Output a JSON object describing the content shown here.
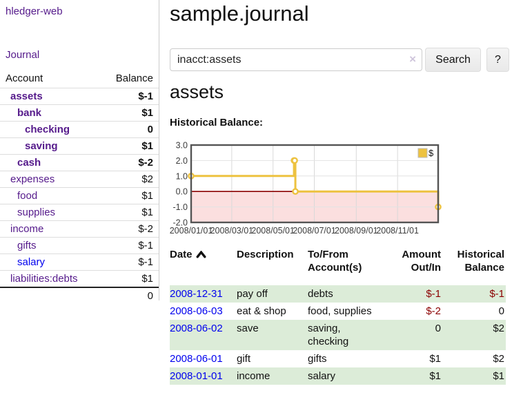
{
  "app": {
    "brand": "hledger-web",
    "nav_journal": "Journal"
  },
  "colors": {
    "link-purple": "#551a8b",
    "link-blue": "#0000ee",
    "negative": "#8b0000",
    "negative-soft": "#c46262",
    "stripe-green": "#dcecd8",
    "chart-gold": "#edc240",
    "chart-negative-bg": "#fbdfdf",
    "zero-line": "#8b0000",
    "grid-border": "#545454",
    "grid-line": "#d9d9d9"
  },
  "sidebar": {
    "header": {
      "account": "Account",
      "balance": "Balance"
    },
    "accounts": [
      {
        "name": "assets",
        "depth": 1,
        "balance": "$-1",
        "bold": true,
        "tone": "neg",
        "link": "purple"
      },
      {
        "name": "bank",
        "depth": 2,
        "balance": "$1",
        "bold": true,
        "tone": "plain",
        "link": "purple"
      },
      {
        "name": "checking",
        "depth": 3,
        "balance": "0",
        "bold": true,
        "tone": "plain",
        "link": "purple"
      },
      {
        "name": "saving",
        "depth": 3,
        "balance": "$1",
        "bold": true,
        "tone": "plain",
        "link": "purple"
      },
      {
        "name": "cash",
        "depth": 2,
        "balance": "$-2",
        "bold": true,
        "tone": "neg",
        "link": "purple"
      },
      {
        "name": "expenses",
        "depth": 1,
        "balance": "$2",
        "bold": false,
        "tone": "plain",
        "link": "purple"
      },
      {
        "name": "food",
        "depth": 2,
        "balance": "$1",
        "bold": false,
        "tone": "plain",
        "link": "purple"
      },
      {
        "name": "supplies",
        "depth": 2,
        "balance": "$1",
        "bold": false,
        "tone": "plain",
        "link": "purple"
      },
      {
        "name": "income",
        "depth": 1,
        "balance": "$-2",
        "bold": false,
        "tone": "negsoft",
        "link": "purple"
      },
      {
        "name": "gifts",
        "depth": 2,
        "balance": "$-1",
        "bold": false,
        "tone": "negsoft",
        "link": "purple"
      },
      {
        "name": "salary",
        "depth": 2,
        "balance": "$-1",
        "bold": false,
        "tone": "negsoft",
        "link": "blue"
      },
      {
        "name": "liabilities:debts",
        "depth": 1,
        "balance": "$1",
        "bold": false,
        "tone": "plain",
        "link": "purple"
      }
    ],
    "total": "0"
  },
  "header": {
    "title": "sample.journal"
  },
  "search": {
    "value": "inacct:assets",
    "clear_icon": "×",
    "search_label": "Search",
    "help_label": "?"
  },
  "page": {
    "heading": "assets"
  },
  "chart_data": {
    "type": "line",
    "step": true,
    "title": "Historical Balance:",
    "series": [
      {
        "name": "$",
        "color": "#edc240",
        "points": [
          [
            "2008-01-01",
            1
          ],
          [
            "2008-06-01",
            2
          ],
          [
            "2008-06-02",
            2
          ],
          [
            "2008-06-03",
            0
          ],
          [
            "2008-12-31",
            -1
          ]
        ]
      }
    ],
    "x_ticks": [
      "2008/01/01",
      "2008/03/01",
      "2008/05/01",
      "2008/07/01",
      "2008/09/01",
      "2008/11/01"
    ],
    "y_ticks": [
      3.0,
      2.0,
      1.0,
      0.0,
      -1.0,
      -2.0
    ],
    "xlim": [
      "2008-01-01",
      "2008-12-31"
    ],
    "ylim": [
      -2,
      3
    ],
    "grid": true,
    "legend": {
      "label": "$",
      "position": "top-right"
    },
    "negative_region_color": "#fbdfdf",
    "zero_line_color": "#8b0000"
  },
  "register": {
    "columns": [
      {
        "lines": [
          "Date"
        ],
        "align": "left",
        "sorted_asc": true
      },
      {
        "lines": [
          "Description"
        ],
        "align": "left"
      },
      {
        "lines": [
          "To/From",
          "Account(s)"
        ],
        "align": "left"
      },
      {
        "lines": [
          "Amount",
          "Out/In"
        ],
        "align": "right"
      },
      {
        "lines": [
          "Historical",
          "Balance"
        ],
        "align": "right"
      }
    ],
    "rows": [
      {
        "date": "2008-12-31",
        "description": "pay off",
        "accounts": "debts",
        "amount": "$-1",
        "amount_neg": true,
        "balance": "$-1",
        "balance_neg": true,
        "stripe": true
      },
      {
        "date": "2008-06-03",
        "description": "eat & shop",
        "accounts": "food, supplies",
        "amount": "$-2",
        "amount_neg": true,
        "balance": "0",
        "balance_neg": false,
        "stripe": false
      },
      {
        "date": "2008-06-02",
        "description": "save",
        "accounts": "saving, checking",
        "amount": "0",
        "amount_neg": false,
        "balance": "$2",
        "balance_neg": false,
        "stripe": true
      },
      {
        "date": "2008-06-01",
        "description": "gift",
        "accounts": "gifts",
        "amount": "$1",
        "amount_neg": false,
        "balance": "$2",
        "balance_neg": false,
        "stripe": false
      },
      {
        "date": "2008-01-01",
        "description": "income",
        "accounts": "salary",
        "amount": "$1",
        "amount_neg": false,
        "balance": "$1",
        "balance_neg": false,
        "stripe": true
      }
    ]
  }
}
